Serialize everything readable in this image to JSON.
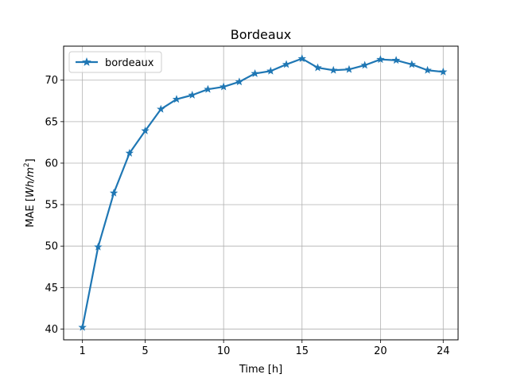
{
  "chart_data": {
    "type": "line",
    "title": "Bordeaux",
    "xlabel": "Time [h]",
    "ylabel_prefix": "MAE [",
    "ylabel_unit_base": "Wh/m",
    "ylabel_unit_exp": "2",
    "ylabel_suffix": "]",
    "xlim": [
      -0.2,
      24.95
    ],
    "ylim": [
      38.7,
      74.1
    ],
    "xticks": [
      1,
      5,
      10,
      15,
      20,
      24
    ],
    "yticks": [
      40,
      45,
      50,
      55,
      60,
      65,
      70
    ],
    "grid": true,
    "legend": "upper-left",
    "series": [
      {
        "name": "bordeaux",
        "color": "#1f77b4",
        "marker": "star",
        "x": [
          1,
          2,
          3,
          4,
          5,
          6,
          7,
          8,
          9,
          10,
          11,
          12,
          13,
          14,
          15,
          16,
          17,
          18,
          19,
          20,
          21,
          22,
          23,
          24
        ],
        "values": [
          40.2,
          49.9,
          56.4,
          61.2,
          63.9,
          66.5,
          67.7,
          68.2,
          68.9,
          69.2,
          69.8,
          70.8,
          71.1,
          71.9,
          72.6,
          71.5,
          71.2,
          71.3,
          71.8,
          72.5,
          72.4,
          71.9,
          71.2,
          71.0
        ]
      }
    ]
  }
}
